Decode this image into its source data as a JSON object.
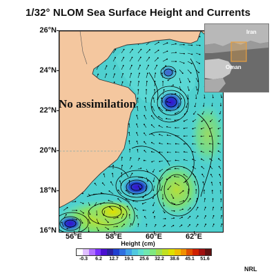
{
  "title": "1/32° NLOM Sea Surface Height and Currents",
  "map": {
    "annotation": "No assimilation",
    "lat_ticks": [
      "26°N",
      "24°N",
      "22°N",
      "20°N",
      "18°N",
      "16°N"
    ],
    "lon_ticks": [
      "56°E",
      "58°E",
      "60°E",
      "62°E"
    ],
    "colors": {
      "land": "#f4c79f",
      "ocean_base": "#4fd0cf",
      "contour": "#000000"
    }
  },
  "inset": {
    "labels": {
      "iran": "Iran",
      "oman": "Oman"
    },
    "highlight_color": "#e8a040"
  },
  "colorbar": {
    "title": "Height (cm)",
    "tick_labels": [
      "-0.3",
      "6.2",
      "12.7",
      "19.1",
      "25.6",
      "32.2",
      "38.6",
      "45.1",
      "51.6"
    ],
    "colors": [
      "#ffffff",
      "#e0c0ff",
      "#b070ff",
      "#7a30ff",
      "#4a10d0",
      "#2a20a0",
      "#2040d0",
      "#3070e0",
      "#40a0e8",
      "#50c8e0",
      "#60e0d0",
      "#70e8b0",
      "#80e880",
      "#a0e050",
      "#c0e020",
      "#e0e000",
      "#f0c000",
      "#f09000",
      "#e05000",
      "#d02000",
      "#a01010",
      "#601010"
    ]
  },
  "credit": "NRL"
}
